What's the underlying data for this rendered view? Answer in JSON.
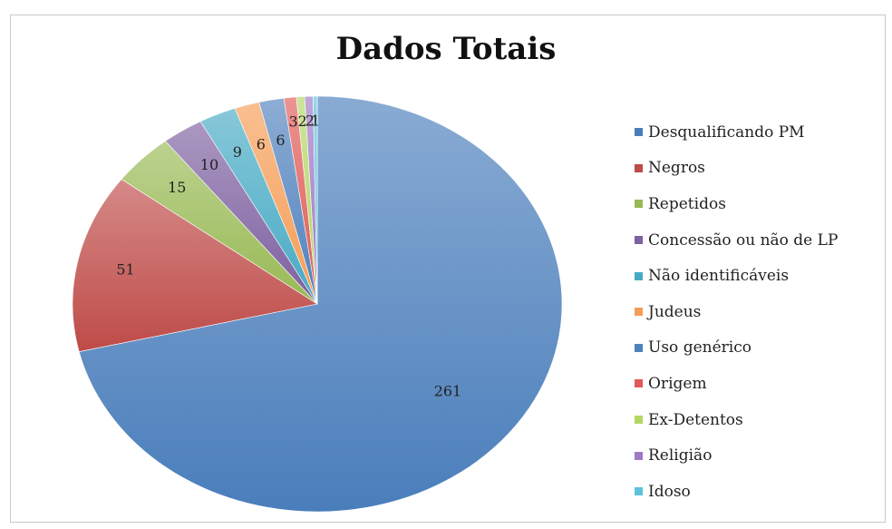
{
  "chart_data": {
    "type": "pie",
    "title": "Dados Totais",
    "categories": [
      "Desqualificando PM",
      "Negros",
      "Repetidos",
      "Concessão ou não de LP",
      "Não identificáveis",
      "Judeus",
      "Uso genérico",
      "Origem",
      "Ex-Detentos",
      "Religião",
      "Idoso"
    ],
    "values": [
      261,
      51,
      15,
      10,
      9,
      6,
      6,
      3,
      2,
      2,
      1
    ],
    "colors": [
      "#4a7ebb",
      "#be4b48",
      "#98b954",
      "#7d60a0",
      "#46aac4",
      "#f59d56",
      "#4f81bd",
      "#e05a56",
      "#b4d764",
      "#9d79c6",
      "#5ec2dc"
    ],
    "legend_position": "right",
    "data_labels": true
  }
}
